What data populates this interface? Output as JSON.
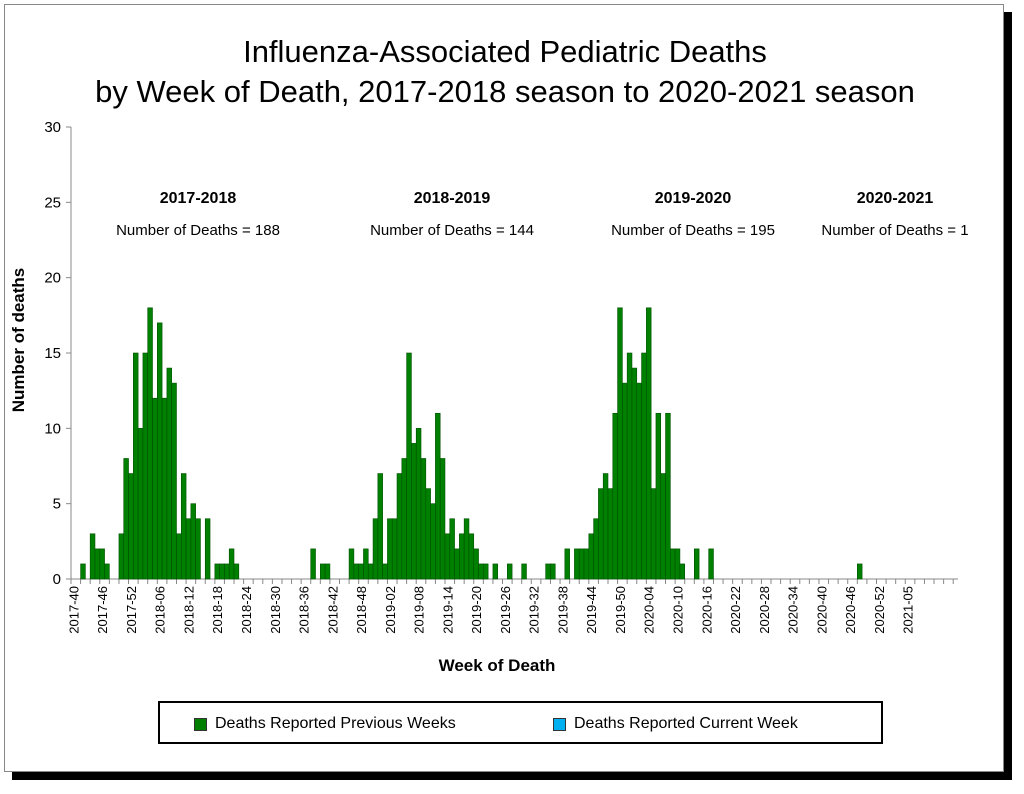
{
  "title_lines": [
    "Influenza-Associated Pediatric Deaths",
    "by Week of Death, 2017-2018 season to 2020-2021 season"
  ],
  "chart_data": {
    "type": "bar",
    "title": "Influenza-Associated Pediatric Deaths by Week of Death, 2017-2018 season to 2020-2021 season",
    "xlabel": "Week of Death",
    "ylabel": "Number of deaths",
    "ylim": [
      0,
      30
    ],
    "y_ticks": [
      0,
      5,
      10,
      15,
      20,
      25,
      30
    ],
    "grid": false,
    "legend_position": "bottom",
    "x_tick_labels": [
      "2017-40",
      "2017-46",
      "2017-52",
      "2018-06",
      "2018-12",
      "2018-18",
      "2018-24",
      "2018-30",
      "2018-36",
      "2018-42",
      "2018-48",
      "2019-02",
      "2019-08",
      "2019-14",
      "2019-20",
      "2019-26",
      "2019-32",
      "2019-38",
      "2019-44",
      "2019-50",
      "2020-04",
      "2020-10",
      "2020-16",
      "2020-22",
      "2020-28",
      "2020-34",
      "2020-40",
      "2020-46",
      "2020-52",
      "2021-05"
    ],
    "season_annotations": [
      {
        "season": "2017-2018",
        "text": "Number of Deaths = 188"
      },
      {
        "season": "2018-2019",
        "text": "Number of Deaths = 144"
      },
      {
        "season": "2019-2020",
        "text": "Number of Deaths = 195"
      },
      {
        "season": "2020-2021",
        "text": "Number of Deaths = 1"
      }
    ],
    "series": [
      {
        "name": "Deaths Reported Previous Weeks",
        "color": "#008000",
        "values": [
          0,
          0,
          1,
          0,
          3,
          2,
          2,
          1,
          0,
          0,
          3,
          8,
          7,
          15,
          10,
          15,
          18,
          12,
          17,
          12,
          14,
          13,
          3,
          7,
          4,
          5,
          4,
          0,
          4,
          0,
          1,
          1,
          1,
          2,
          1,
          0,
          0,
          0,
          0,
          0,
          0,
          0,
          0,
          0,
          0,
          0,
          0,
          0,
          0,
          0,
          2,
          0,
          1,
          1,
          0,
          0,
          0,
          0,
          2,
          1,
          1,
          2,
          1,
          4,
          7,
          1,
          4,
          4,
          7,
          8,
          15,
          9,
          10,
          8,
          6,
          5,
          11,
          8,
          3,
          4,
          2,
          3,
          4,
          3,
          2,
          1,
          1,
          0,
          1,
          0,
          0,
          1,
          0,
          0,
          1,
          0,
          0,
          0,
          0,
          1,
          1,
          0,
          0,
          2,
          0,
          2,
          2,
          2,
          3,
          4,
          6,
          7,
          6,
          11,
          18,
          13,
          15,
          14,
          13,
          15,
          18,
          6,
          11,
          7,
          11,
          2,
          2,
          1,
          0,
          0,
          2,
          0,
          0,
          2,
          0,
          0,
          0,
          0,
          0,
          0,
          0,
          0,
          0,
          0,
          0,
          0,
          0,
          0,
          0,
          0,
          0,
          0,
          0,
          0,
          0,
          0,
          0,
          0,
          0,
          0,
          0,
          0,
          0,
          0,
          1,
          0,
          0,
          0,
          0,
          0,
          0,
          0,
          0,
          0,
          0,
          0,
          0,
          0,
          0,
          0,
          0,
          0,
          0,
          0,
          0
        ]
      },
      {
        "name": "Deaths Reported Current Week",
        "color": "#00b0f0",
        "values": []
      }
    ]
  }
}
